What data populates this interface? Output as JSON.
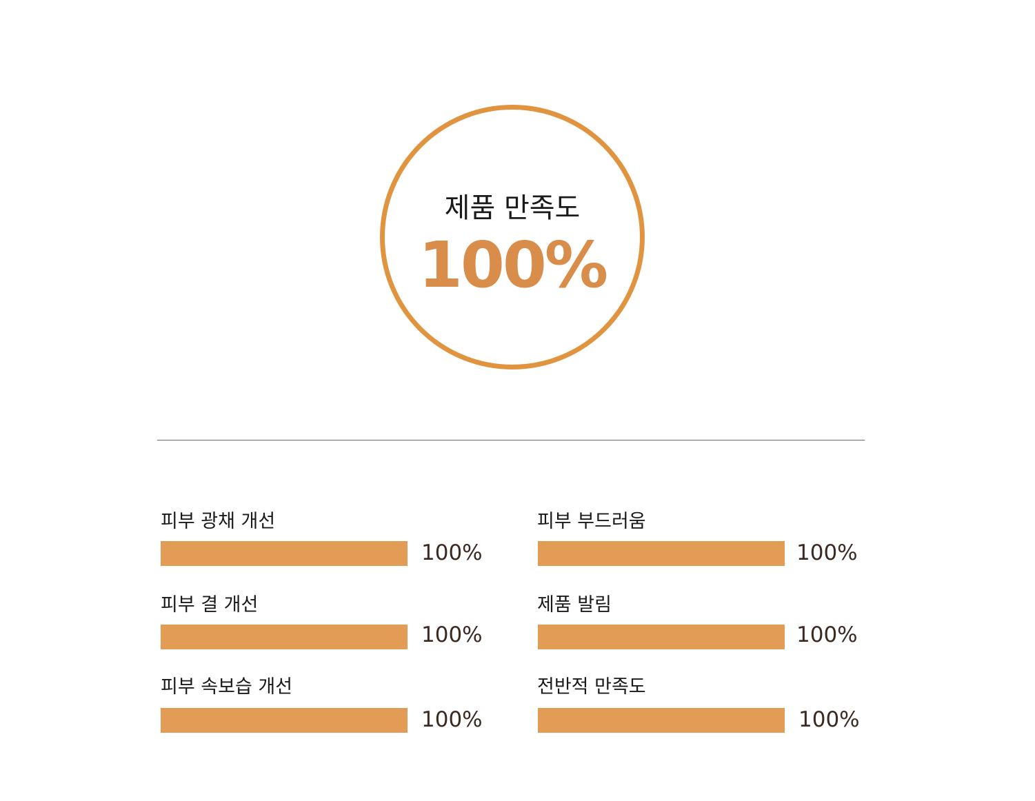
{
  "colors": {
    "accent": "#e39c56",
    "circle_border": "#e19440",
    "summary_value": "#d98d4b",
    "value_text": "#3a2a22",
    "divider": "#6b6b6b"
  },
  "summary": {
    "title": "제품 만족도",
    "value": "100%"
  },
  "chart_data": {
    "type": "bar",
    "orientation": "horizontal",
    "categories": [
      "피부 광채 개선",
      "피부 결 개선",
      "피부 속보습 개선",
      "피부 부드러움",
      "제품 발림",
      "전반적 만족도"
    ],
    "values": [
      100,
      100,
      100,
      100,
      100,
      100
    ],
    "value_labels": [
      "100%",
      "100%",
      "100%",
      "100%",
      "100%",
      "100%"
    ],
    "xlim": [
      0,
      100
    ],
    "grid": false
  }
}
